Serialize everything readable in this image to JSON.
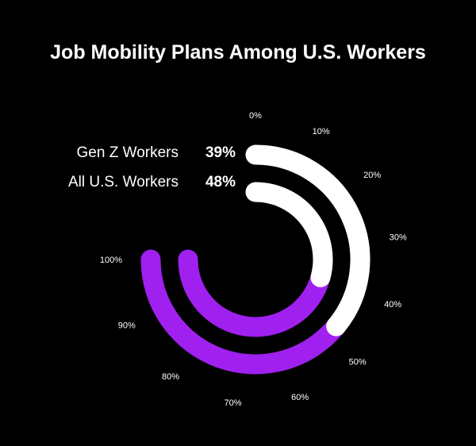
{
  "chart_data": {
    "type": "radial-bar",
    "title": "Job Mobility Plans Among U.S. Workers",
    "ticks": [
      "0%",
      "10%",
      "20%",
      "30%",
      "40%",
      "50%",
      "60%",
      "70%",
      "80%",
      "90%",
      "100%"
    ],
    "ylim": [
      0,
      100
    ],
    "series": [
      {
        "name": "Gen Z Workers",
        "label": "39%",
        "value": 39
      },
      {
        "name": "All U.S. Workers",
        "label": "48%",
        "value": 48
      }
    ],
    "colors": {
      "background": "#000000",
      "filled": "#ffffff",
      "remaining": "#a020f0",
      "text": "#ffffff"
    }
  }
}
